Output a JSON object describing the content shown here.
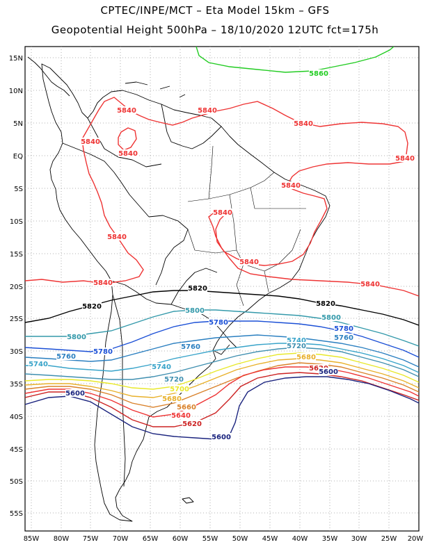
{
  "header": {
    "line1": "CPTEC/INPE/MCT –  Eta Model 15km – GFS",
    "line2": "Geopotential Height 500hPa – 18/10/2020 12UTC fct=175h"
  },
  "map": {
    "lon_range": [
      -86,
      -20
    ],
    "lat_range": [
      -58,
      16
    ],
    "lat_ticks": [
      "15N",
      "10N",
      "5N",
      "EQ",
      "5S",
      "10S",
      "15S",
      "20S",
      "25S",
      "30S",
      "35S",
      "40S",
      "45S",
      "50S",
      "55S"
    ],
    "lon_ticks": [
      "85W",
      "80W",
      "75W",
      "70W",
      "65W",
      "60W",
      "55W",
      "50W",
      "45W",
      "40W",
      "35W",
      "30W",
      "25W",
      "20W"
    ],
    "gridlines": "dotted"
  },
  "contours": [
    {
      "level": 5860,
      "color": "#22cc22",
      "labels": [
        "5860"
      ]
    },
    {
      "level": 5840,
      "color": "#ee3333",
      "labels": [
        "5840",
        "5840",
        "5840",
        "5840",
        "5840",
        "5840",
        "5840",
        "5840",
        "5840",
        "5840",
        "5840",
        "5840"
      ]
    },
    {
      "level": 5820,
      "color": "#000000",
      "labels": [
        "5820",
        "5820",
        "5820"
      ]
    },
    {
      "level": 5800,
      "color": "#3399aa",
      "labels": [
        "5800",
        "5800",
        "5800"
      ]
    },
    {
      "level": 5780,
      "color": "#1a4fd6",
      "labels": [
        "5780",
        "5780",
        "5780"
      ]
    },
    {
      "level": 5760,
      "color": "#2a7fc0",
      "labels": [
        "5760",
        "5760",
        "5760"
      ]
    },
    {
      "level": 5740,
      "color": "#37a3c9",
      "labels": [
        "5740",
        "5740",
        "5740"
      ]
    },
    {
      "level": 5720,
      "color": "#3f8fb0",
      "labels": [
        "5720",
        "5720"
      ]
    },
    {
      "level": 5700,
      "color": "#e8e82a",
      "labels": [
        "5700"
      ]
    },
    {
      "level": 5680,
      "color": "#e8b02a",
      "labels": [
        "5680",
        "5680"
      ]
    },
    {
      "level": 5660,
      "color": "#d9812a",
      "labels": [
        "5660"
      ]
    },
    {
      "level": 5640,
      "color": "#ee3333",
      "labels": [
        "5640"
      ]
    },
    {
      "level": 5620,
      "color": "#cc2222",
      "labels": [
        "5620",
        "5620"
      ]
    },
    {
      "level": 5600,
      "color": "#1a237e",
      "labels": [
        "5600",
        "5600",
        "5600"
      ]
    }
  ]
}
